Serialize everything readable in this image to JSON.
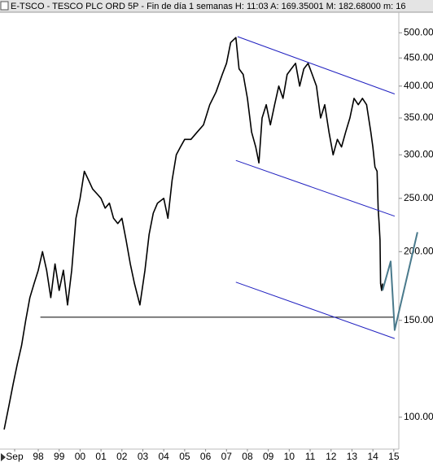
{
  "chart_data": {
    "type": "line",
    "title": "E-TSCO - TESCO PLC ORD 5P - Fin de día 1 semanas  H: 11:03  A: 169.35001  M: 182.68000  m: 16",
    "log_y": true,
    "grid": false,
    "xlim": [
      1996.17,
      2015.24
    ],
    "ylim": [
      87.5,
      545
    ],
    "yticks": [
      {
        "value": 500,
        "label": "500.00"
      },
      {
        "value": 450,
        "label": "450.00"
      },
      {
        "value": 400,
        "label": "400.00"
      },
      {
        "value": 350,
        "label": "350.00"
      },
      {
        "value": 300,
        "label": "300.00"
      },
      {
        "value": 250,
        "label": "250.00"
      },
      {
        "value": 200,
        "label": "200.00"
      },
      {
        "value": 150,
        "label": "150.00"
      },
      {
        "value": 100,
        "label": "100.00"
      }
    ],
    "xticks": [
      {
        "value": 1996.87,
        "label": "Sep"
      },
      {
        "value": 1998,
        "label": "98"
      },
      {
        "value": 1999,
        "label": "99"
      },
      {
        "value": 2000,
        "label": "00"
      },
      {
        "value": 2001,
        "label": "01"
      },
      {
        "value": 2002,
        "label": "02"
      },
      {
        "value": 2003,
        "label": "03"
      },
      {
        "value": 2004,
        "label": "04"
      },
      {
        "value": 2005,
        "label": "05"
      },
      {
        "value": 2006,
        "label": "06"
      },
      {
        "value": 2007,
        "label": "07"
      },
      {
        "value": 2008,
        "label": "08"
      },
      {
        "value": 2009,
        "label": "09"
      },
      {
        "value": 2010,
        "label": "10"
      },
      {
        "value": 2011,
        "label": "11"
      },
      {
        "value": 2012,
        "label": "12"
      },
      {
        "value": 2013,
        "label": "13"
      },
      {
        "value": 2014,
        "label": "14"
      },
      {
        "value": 2015,
        "label": "15"
      }
    ],
    "series": [
      {
        "color": "#000000",
        "x": [
          1996.37,
          1996.6,
          1996.8,
          1997.0,
          1997.2,
          1997.4,
          1997.6,
          1997.8,
          1998.0,
          1998.2,
          1998.4,
          1998.6,
          1998.8,
          1999.0,
          1999.2,
          1999.4,
          1999.6,
          1999.8,
          2000.0,
          2000.2,
          2000.4,
          2000.6,
          2000.8,
          2001.0,
          2001.2,
          2001.4,
          2001.6,
          2001.8,
          2002.0,
          2002.2,
          2002.4,
          2002.6,
          2002.86,
          2003.1,
          2003.3,
          2003.5,
          2003.7,
          2004.0,
          2004.2,
          2004.4,
          2004.6,
          2004.8,
          2005.0,
          2005.3,
          2005.6,
          2005.9,
          2006.2,
          2006.5,
          2006.8,
          2007.0,
          2007.2,
          2007.45,
          2007.6,
          2007.8,
          2008.0,
          2008.2,
          2008.4,
          2008.55,
          2008.7,
          2008.9,
          2009.1,
          2009.3,
          2009.5,
          2009.7,
          2009.9,
          2010.1,
          2010.3,
          2010.5,
          2010.7,
          2010.9,
          2011.1,
          2011.3,
          2011.5,
          2011.7,
          2011.9,
          2012.1,
          2012.3,
          2012.5,
          2012.7,
          2012.9,
          2013.1,
          2013.3,
          2013.5,
          2013.7,
          2013.9,
          2014.0,
          2014.1,
          2014.2,
          2014.25,
          2014.3,
          2014.34,
          2014.37,
          2014.42,
          2014.46
        ],
        "values": [
          95,
          105,
          115,
          125,
          135,
          150,
          165,
          175,
          185,
          200,
          185,
          165,
          190,
          170,
          185,
          160,
          185,
          230,
          250,
          280,
          270,
          260,
          255,
          250,
          240,
          245,
          230,
          225,
          230,
          210,
          190,
          175,
          160,
          185,
          215,
          235,
          245,
          250,
          230,
          270,
          300,
          310,
          320,
          320,
          330,
          340,
          370,
          390,
          420,
          440,
          480,
          490,
          430,
          420,
          380,
          330,
          310,
          290,
          350,
          370,
          340,
          370,
          400,
          380,
          420,
          430,
          440,
          400,
          430,
          440,
          420,
          400,
          350,
          370,
          330,
          300,
          320,
          310,
          330,
          350,
          380,
          370,
          380,
          370,
          330,
          310,
          285,
          280,
          240,
          225,
          210,
          175,
          170,
          175
        ]
      },
      {
        "color": "#000000",
        "x": [
          1998.1,
          2015.0
        ],
        "values": [
          152,
          152
        ]
      },
      {
        "color": "#2020c0",
        "x": [
          2007.53,
          2015.04
        ],
        "values": [
          492,
          387
        ]
      },
      {
        "color": "#2020c0",
        "x": [
          2007.45,
          2015.04
        ],
        "values": [
          293,
          232
        ]
      },
      {
        "color": "#2020c0",
        "x": [
          2007.45,
          2015.04
        ],
        "values": [
          176,
          139
        ]
      },
      {
        "color": "#4a7a8c",
        "x": [
          2014.46,
          2014.85,
          2015.04,
          2016.13
        ],
        "values": [
          170,
          192,
          144,
          217
        ]
      }
    ]
  }
}
